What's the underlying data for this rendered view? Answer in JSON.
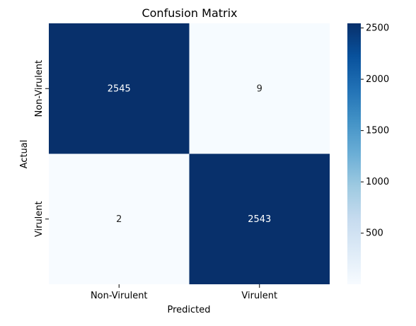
{
  "chart_data": {
    "type": "heatmap",
    "title": "Confusion Matrix",
    "xlabel": "Predicted",
    "ylabel": "Actual",
    "x_categories": [
      "Non-Virulent",
      "Virulent"
    ],
    "y_categories": [
      "Non-Virulent",
      "Virulent"
    ],
    "matrix": [
      [
        2545,
        9
      ],
      [
        2,
        2543
      ]
    ],
    "value_range": [
      2,
      2545
    ],
    "colormap": "Blues",
    "colorbar_ticks": [
      500,
      1000,
      1500,
      2000,
      2500
    ],
    "colors": {
      "low": "#f7fbff",
      "high": "#08306b",
      "text_on_dark": "#ffffff",
      "text_on_light": "#262626"
    }
  }
}
